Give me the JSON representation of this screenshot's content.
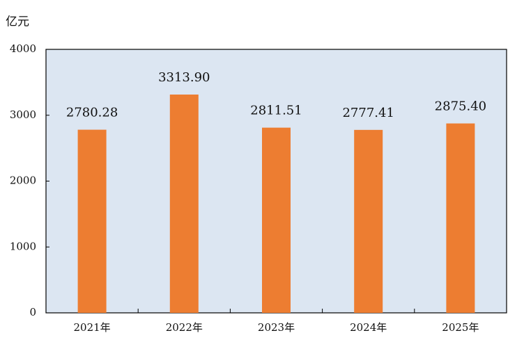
{
  "chart_data": {
    "type": "bar",
    "y_label": "亿元",
    "categories": [
      "2021年",
      "2022年",
      "2023年",
      "2024年",
      "2025年"
    ],
    "values": [
      2780.28,
      3313.9,
      2811.51,
      2777.41,
      2875.4
    ],
    "value_labels": [
      "2780.28",
      "3313.90",
      "2811.51",
      "2777.41",
      "2875.40"
    ],
    "color": "#ed7d31",
    "background": "#dce6f2",
    "ylim": [
      0,
      4000
    ],
    "yticks": [
      0,
      1000,
      2000,
      3000,
      4000
    ],
    "grid": false
  }
}
